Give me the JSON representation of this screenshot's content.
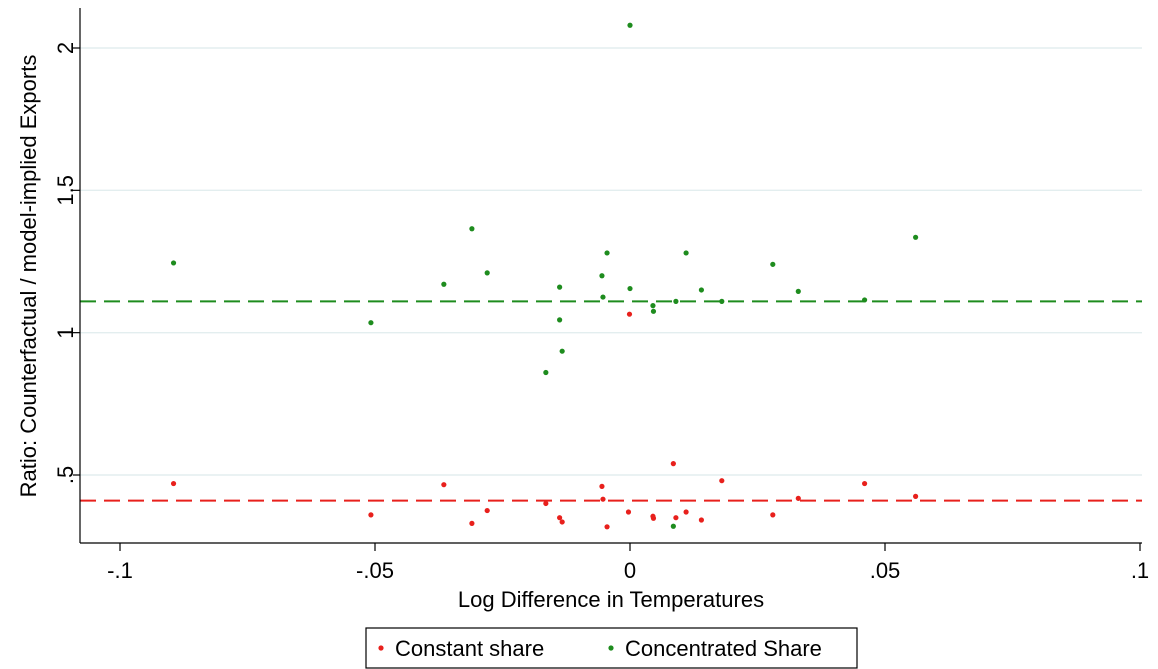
{
  "chart_data": {
    "type": "scatter",
    "xlabel": "Log Difference in Temperatures",
    "ylabel": "Ratio: Counterfactual / model-implied Exports",
    "xlim": [
      -0.1,
      0.1
    ],
    "ylim": [
      0.29,
      2.1
    ],
    "x_ticks": [
      {
        "value": -0.1,
        "label": "-.1"
      },
      {
        "value": -0.05,
        "label": "-.05"
      },
      {
        "value": 0,
        "label": "0"
      },
      {
        "value": 0.05,
        "label": ".05"
      },
      {
        "value": 0.1,
        "label": ".1"
      }
    ],
    "y_ticks": [
      {
        "value": 0.5,
        "label": ".5"
      },
      {
        "value": 1,
        "label": "1"
      },
      {
        "value": 1.5,
        "label": "1.5"
      },
      {
        "value": 2,
        "label": "2"
      }
    ],
    "grid": "horizontal",
    "legend_position": "bottom",
    "series": [
      {
        "name": "Constant share",
        "color": "#e8201c",
        "mean_line": 0.41,
        "points": [
          [
            -0.0895,
            0.47
          ],
          [
            -0.0508,
            0.36
          ],
          [
            -0.0365,
            0.466
          ],
          [
            -0.031,
            0.33
          ],
          [
            -0.028,
            0.375
          ],
          [
            -0.0165,
            0.4
          ],
          [
            -0.0138,
            0.35
          ],
          [
            -0.0133,
            0.335
          ],
          [
            -0.0055,
            0.46
          ],
          [
            -0.0053,
            0.415
          ],
          [
            -0.0045,
            0.318
          ],
          [
            -0.0003,
            0.37
          ],
          [
            -0.0001,
            1.065
          ],
          [
            0.0045,
            0.355
          ],
          [
            0.0046,
            0.348
          ],
          [
            0.0085,
            0.54
          ],
          [
            0.009,
            0.35
          ],
          [
            0.011,
            0.37
          ],
          [
            0.014,
            0.342
          ],
          [
            0.018,
            0.48
          ],
          [
            0.028,
            0.36
          ],
          [
            0.033,
            0.418
          ],
          [
            0.046,
            0.47
          ],
          [
            0.056,
            0.425
          ]
        ]
      },
      {
        "name": "Concentrated Share",
        "color": "#1e8c1e",
        "mean_line": 1.11,
        "points": [
          [
            -0.0895,
            1.245
          ],
          [
            -0.0508,
            1.035
          ],
          [
            -0.0365,
            1.17
          ],
          [
            -0.031,
            1.365
          ],
          [
            -0.028,
            1.21
          ],
          [
            -0.0165,
            0.86
          ],
          [
            -0.0138,
            1.16
          ],
          [
            -0.0138,
            1.045
          ],
          [
            -0.0133,
            0.935
          ],
          [
            -0.0055,
            1.2
          ],
          [
            -0.0053,
            1.125
          ],
          [
            -0.0045,
            1.28
          ],
          [
            0.0,
            2.08
          ],
          [
            0.0,
            1.155
          ],
          [
            0.0045,
            1.095
          ],
          [
            0.0046,
            1.075
          ],
          [
            0.0085,
            0.32
          ],
          [
            0.009,
            1.11
          ],
          [
            0.011,
            1.28
          ],
          [
            0.014,
            1.15
          ],
          [
            0.018,
            1.11
          ],
          [
            0.028,
            1.24
          ],
          [
            0.033,
            1.145
          ],
          [
            0.046,
            1.115
          ],
          [
            0.056,
            1.335
          ]
        ]
      }
    ]
  }
}
